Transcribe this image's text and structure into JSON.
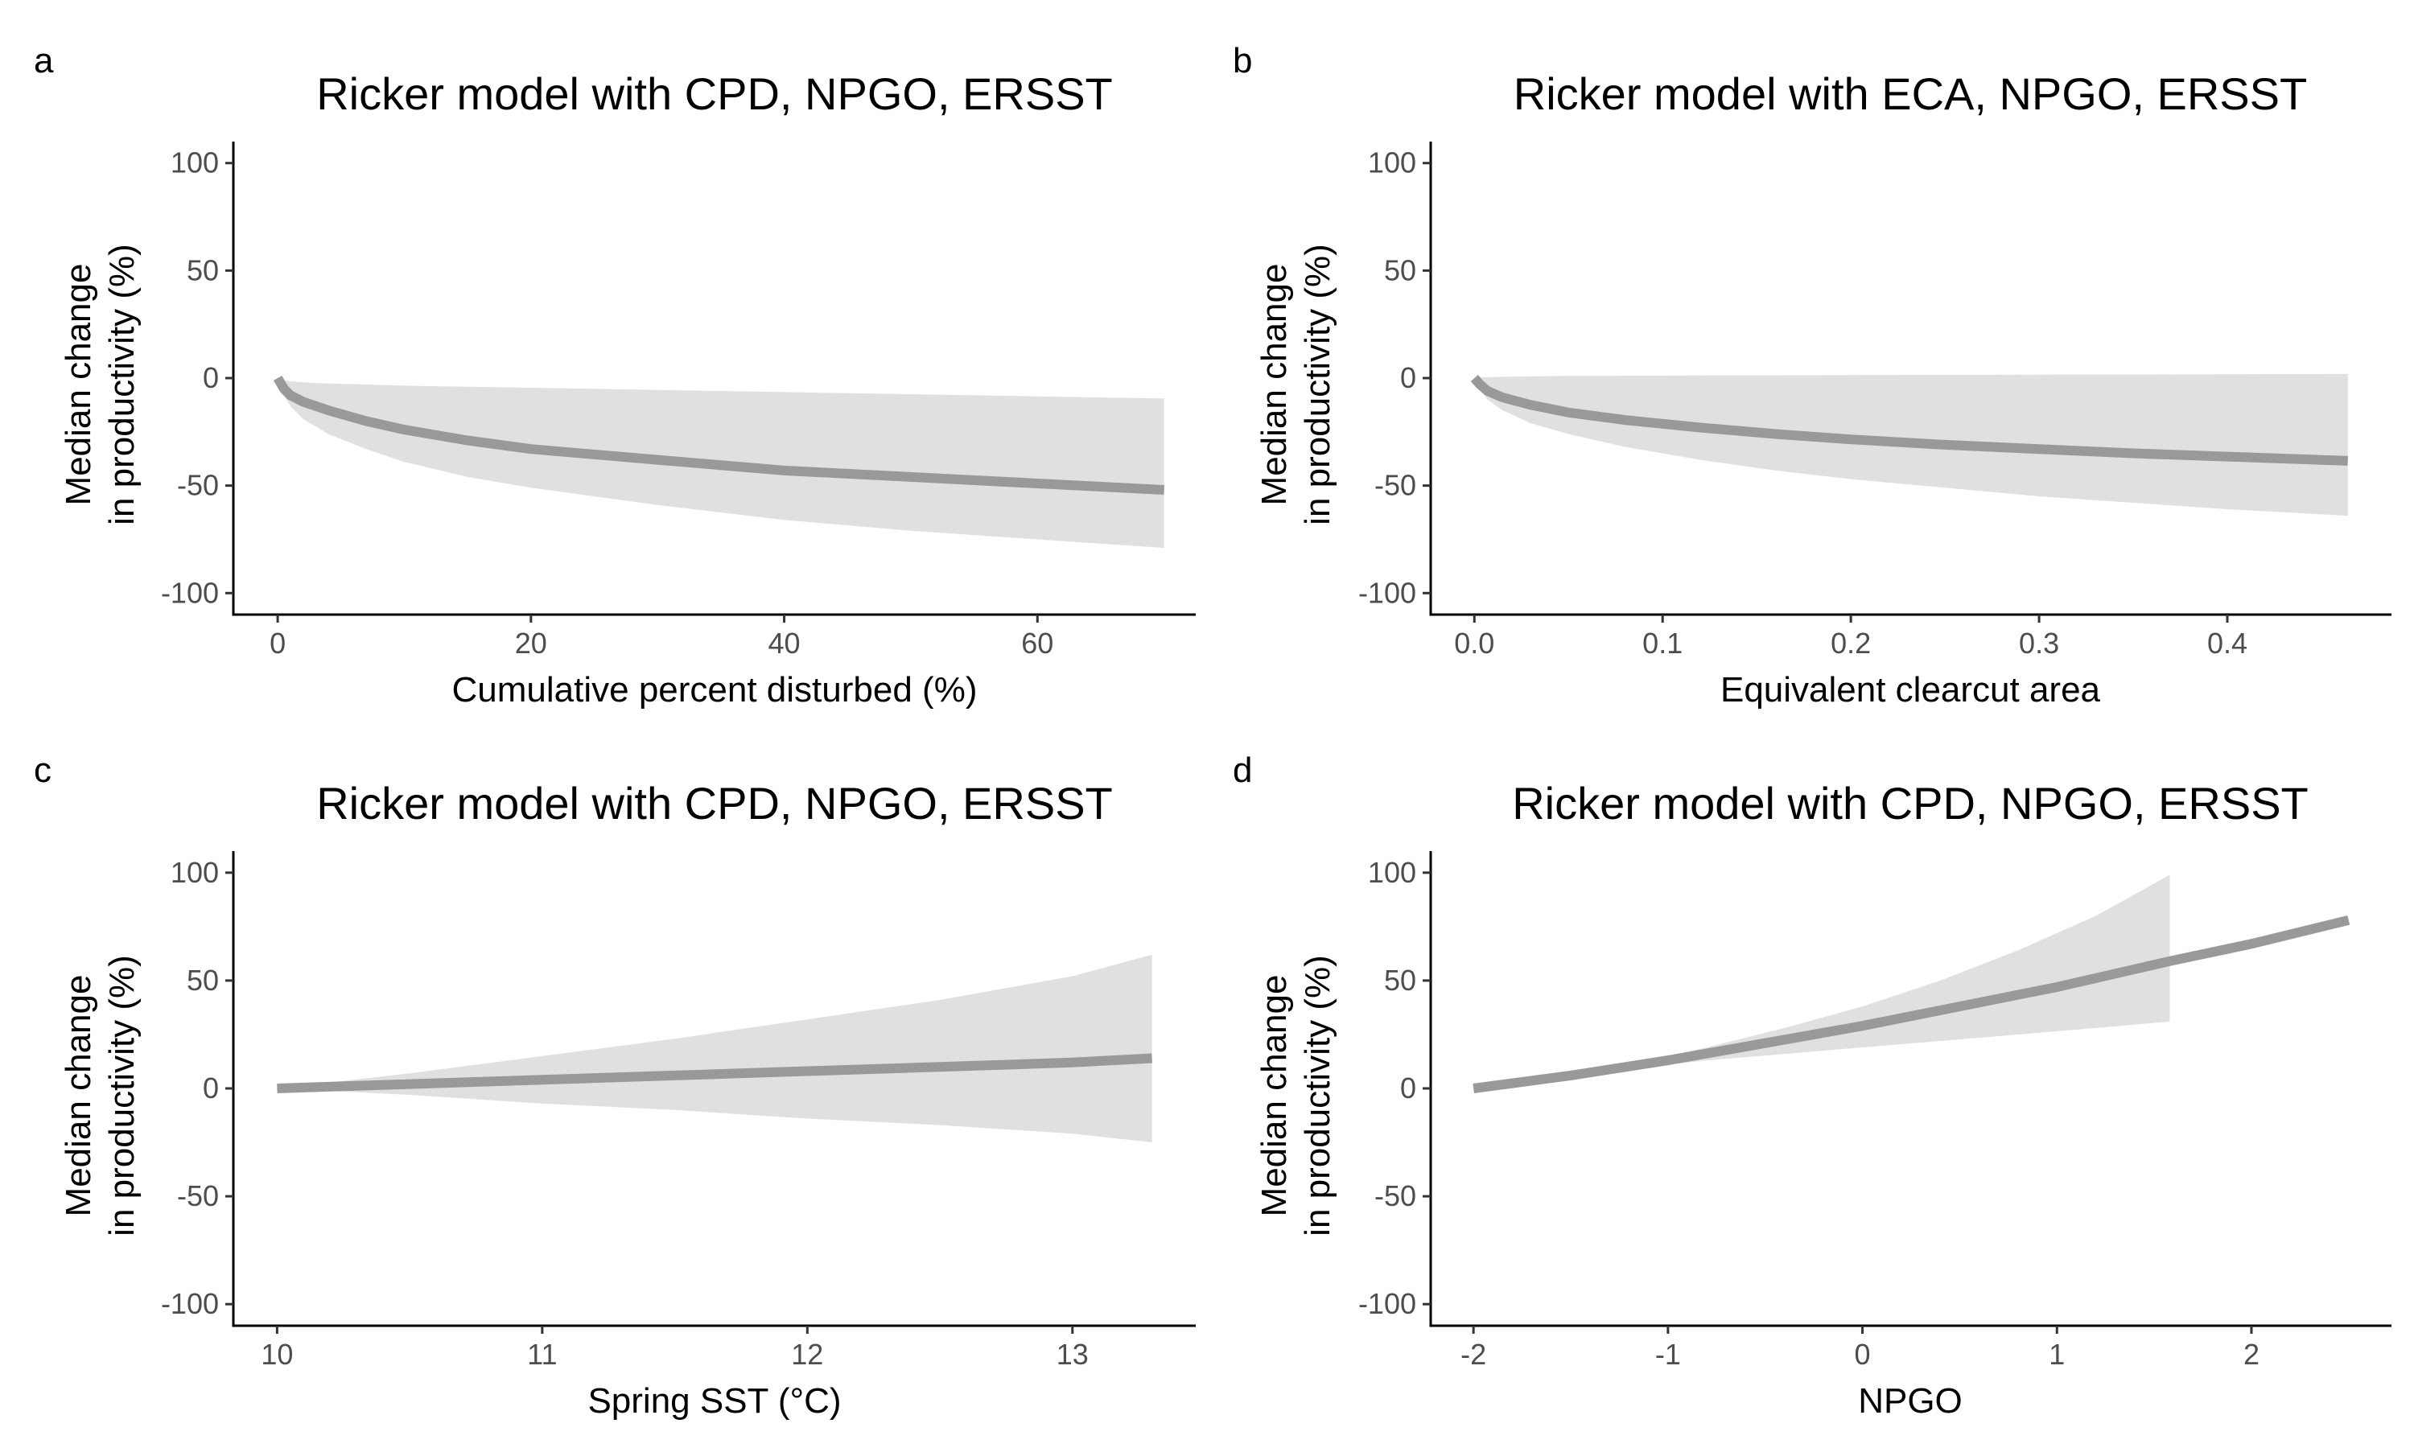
{
  "figure": {
    "panels": [
      {
        "letter": "a",
        "title": "Ricker model with CPD, NPGO, ERSST",
        "xlabel": "Cumulative percent disturbed (%)",
        "ylabel_line1": "Median change",
        "ylabel_line2": "in productivity (%)"
      },
      {
        "letter": "b",
        "title": "Ricker model with ECA, NPGO, ERSST",
        "xlabel": "Equivalent clearcut area",
        "ylabel_line1": "Median change",
        "ylabel_line2": "in productivity (%)"
      },
      {
        "letter": "c",
        "title": "Ricker model with CPD, NPGO, ERSST",
        "xlabel": "Spring SST (°C)",
        "ylabel_line1": "Median change",
        "ylabel_line2": "in productivity (%)"
      },
      {
        "letter": "d",
        "title": "Ricker model with CPD, NPGO, ERSST",
        "xlabel": "NPGO",
        "ylabel_line1": "Median change",
        "ylabel_line2": "in productivity (%)"
      }
    ]
  },
  "colors": {
    "median_line": "#999999",
    "ribbon": "#e0e0e0",
    "axis": "#000000",
    "tick_label": "#4d4d4d"
  },
  "chart_data": [
    {
      "type": "line",
      "title": "Ricker model with CPD, NPGO, ERSST",
      "xlabel": "Cumulative percent disturbed (%)",
      "ylabel": "Median change in productivity (%)",
      "xlim": [
        -3.5,
        72.5
      ],
      "ylim": [
        -110,
        110
      ],
      "xticks": [
        0,
        20,
        40,
        60
      ],
      "xtick_labels": [
        "0",
        "20",
        "40",
        "60"
      ],
      "yticks": [
        -100,
        -50,
        0,
        50,
        100
      ],
      "ytick_labels": [
        "-100",
        "-50",
        "0",
        "50",
        "100"
      ],
      "series": [
        {
          "name": "median",
          "x": [
            0,
            0.5,
            1,
            2,
            4,
            7,
            10,
            15,
            20,
            30,
            40,
            50,
            60,
            70
          ],
          "y": [
            0,
            -5,
            -8,
            -11,
            -15,
            -20,
            -24,
            -29,
            -33,
            -38,
            -43,
            -46,
            -49,
            -52
          ]
        }
      ],
      "ribbon": {
        "x": [
          0,
          0.5,
          1,
          2,
          4,
          7,
          10,
          15,
          20,
          30,
          40,
          50,
          60,
          70
        ],
        "lower": [
          0,
          -8,
          -13,
          -19,
          -26,
          -33,
          -39,
          -46,
          -51,
          -59,
          -66,
          -71,
          -75,
          -79
        ],
        "upper": [
          0,
          -1,
          -1.5,
          -2,
          -2.5,
          -3,
          -3.5,
          -4,
          -4.5,
          -5.5,
          -6.5,
          -7.5,
          -8.5,
          -9.5
        ]
      }
    },
    {
      "type": "line",
      "title": "Ricker model with ECA, NPGO, ERSST",
      "xlabel": "Equivalent clearcut area",
      "ylabel": "Median change in productivity (%)",
      "xlim": [
        -0.0232,
        0.4872
      ],
      "ylim": [
        -110,
        110
      ],
      "xticks": [
        0,
        0.1,
        0.2,
        0.3,
        0.4
      ],
      "xtick_labels": [
        "0.0",
        "0.1",
        "0.2",
        "0.3",
        "0.4"
      ],
      "yticks": [
        -100,
        -50,
        0,
        50,
        100
      ],
      "ytick_labels": [
        "-100",
        "-50",
        "0",
        "50",
        "100"
      ],
      "series": [
        {
          "name": "median",
          "x": [
            0,
            0.003,
            0.007,
            0.015,
            0.03,
            0.05,
            0.08,
            0.12,
            0.16,
            0.2,
            0.25,
            0.3,
            0.35,
            0.4,
            0.464
          ],
          "y": [
            0,
            -3,
            -6,
            -9,
            -12.5,
            -16,
            -19.5,
            -23,
            -26,
            -28.5,
            -31,
            -33,
            -35,
            -36.5,
            -38.5
          ]
        }
      ],
      "ribbon": {
        "x": [
          0,
          0.003,
          0.007,
          0.015,
          0.03,
          0.05,
          0.08,
          0.12,
          0.16,
          0.2,
          0.25,
          0.3,
          0.35,
          0.4,
          0.464
        ],
        "lower": [
          0,
          -5,
          -10,
          -15,
          -21,
          -26,
          -32,
          -38,
          -43,
          -47,
          -51,
          -55,
          -58,
          -61,
          -64
        ],
        "upper": [
          0,
          0.2,
          0.4,
          0.6,
          0.8,
          1,
          1.1,
          1.2,
          1.3,
          1.4,
          1.5,
          1.6,
          1.7,
          1.8,
          1.9
        ]
      }
    },
    {
      "type": "line",
      "title": "Ricker model with CPD, NPGO, ERSST",
      "xlabel": "Spring SST (°C)",
      "ylabel": "Median change in productivity (%)",
      "xlim": [
        9.835,
        13.465
      ],
      "ylim": [
        -110,
        110
      ],
      "xticks": [
        10,
        11,
        12,
        13
      ],
      "xtick_labels": [
        "10",
        "11",
        "12",
        "13"
      ],
      "yticks": [
        -100,
        -50,
        0,
        50,
        100
      ],
      "ytick_labels": [
        "-100",
        "-50",
        "0",
        "50",
        "100"
      ],
      "series": [
        {
          "name": "median",
          "x": [
            10,
            10.5,
            11,
            11.5,
            12,
            12.5,
            13,
            13.3
          ],
          "y": [
            0,
            2,
            4,
            6,
            8,
            10,
            12,
            14
          ]
        }
      ],
      "ribbon": {
        "x": [
          10,
          10.5,
          11,
          11.5,
          12,
          12.5,
          13,
          13.3
        ],
        "lower": [
          0,
          -3,
          -7,
          -10,
          -14,
          -17,
          -21,
          -25
        ],
        "upper": [
          0,
          7,
          15,
          23,
          32,
          41,
          52,
          62
        ]
      }
    },
    {
      "type": "line",
      "title": "Ricker model with CPD, NPGO, ERSST",
      "xlabel": "NPGO",
      "ylabel": "Median change in productivity (%)",
      "xlim": [
        -2.22,
        2.72
      ],
      "ylim": [
        -110,
        110
      ],
      "xticks": [
        -2,
        -1,
        0,
        1,
        2
      ],
      "xtick_labels": [
        "-2",
        "-1",
        "0",
        "1",
        "2"
      ],
      "yticks": [
        -100,
        -50,
        0,
        50,
        100
      ],
      "ytick_labels": [
        "-100",
        "-50",
        "0",
        "50",
        "100"
      ],
      "series": [
        {
          "name": "median",
          "x": [
            -2,
            -1.5,
            -1,
            -0.5,
            0,
            0.5,
            1,
            1.58,
            2,
            2.5
          ],
          "y": [
            0,
            6,
            13,
            21,
            29,
            38,
            47,
            59,
            67,
            78
          ]
        }
      ],
      "ribbon": {
        "x": [
          -2,
          -1.6,
          -1.2,
          -0.8,
          -0.4,
          0,
          0.4,
          0.8,
          1.2,
          1.58
        ],
        "lower": [
          0,
          4,
          9,
          13,
          16,
          19,
          22,
          25,
          28,
          31
        ],
        "upper": [
          0,
          5,
          11,
          19,
          28,
          38,
          50,
          64,
          80,
          99
        ]
      }
    }
  ]
}
